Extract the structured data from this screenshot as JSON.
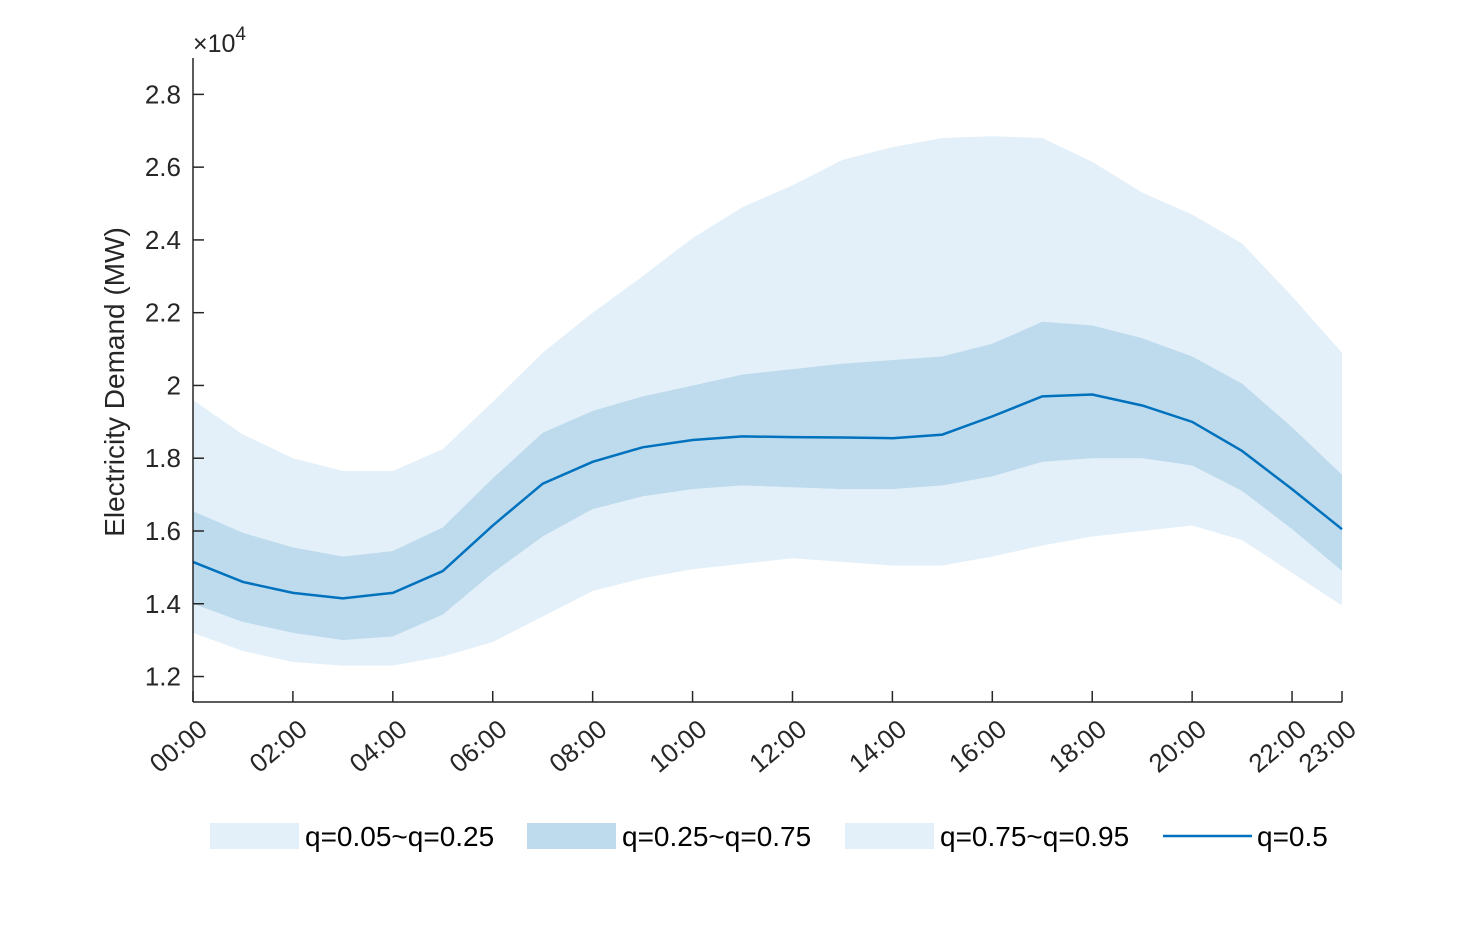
{
  "chart_data": {
    "type": "area",
    "ylabel": "Electricity Demand (MW)",
    "xlabel": "",
    "y_multiplier": {
      "times": "×10",
      "exponent": "4"
    },
    "ylim": [
      11300,
      29000
    ],
    "yticks": [
      12000,
      14000,
      16000,
      18000,
      20000,
      22000,
      24000,
      26000,
      28000
    ],
    "ytick_labels": [
      "1.2",
      "1.4",
      "1.6",
      "1.8",
      "2",
      "2.2",
      "2.4",
      "2.6",
      "2.8"
    ],
    "x_hours": [
      0,
      1,
      2,
      3,
      4,
      5,
      6,
      7,
      8,
      9,
      10,
      11,
      12,
      13,
      14,
      15,
      16,
      17,
      18,
      19,
      20,
      21,
      22,
      23
    ],
    "xticks": [
      0,
      2,
      4,
      6,
      8,
      10,
      12,
      14,
      16,
      18,
      20,
      22,
      23
    ],
    "xtick_labels": [
      "00:00",
      "02:00",
      "04:00",
      "06:00",
      "08:00",
      "10:00",
      "12:00",
      "14:00",
      "16:00",
      "18:00",
      "20:00",
      "22:00",
      "23:00"
    ],
    "quantiles": {
      "q05": [
        13200,
        12700,
        12400,
        12300,
        12300,
        12550,
        12950,
        13650,
        14350,
        14700,
        14950,
        15100,
        15250,
        15150,
        15050,
        15050,
        15300,
        15600,
        15850,
        16000,
        16150,
        15750,
        14850,
        13950
      ],
      "q25": [
        14000,
        13500,
        13200,
        13000,
        13100,
        13700,
        14850,
        15850,
        16600,
        16950,
        17150,
        17250,
        17200,
        17150,
        17150,
        17250,
        17500,
        17900,
        18000,
        18000,
        17800,
        17100,
        16050,
        14900
      ],
      "q50": [
        15150,
        14600,
        14300,
        14150,
        14300,
        14900,
        16150,
        17300,
        17900,
        18300,
        18500,
        18600,
        18580,
        18570,
        18550,
        18650,
        19150,
        19700,
        19750,
        19450,
        19000,
        18200,
        17150,
        16050
      ],
      "q75": [
        16550,
        15950,
        15550,
        15300,
        15450,
        16100,
        17450,
        18700,
        19300,
        19700,
        20000,
        20300,
        20450,
        20600,
        20700,
        20800,
        21150,
        21750,
        21650,
        21300,
        20800,
        20050,
        18850,
        17550
      ],
      "q95": [
        19600,
        18650,
        18000,
        17650,
        17650,
        18250,
        19550,
        20900,
        22000,
        23000,
        24050,
        24900,
        25500,
        26200,
        26550,
        26800,
        26850,
        26800,
        26150,
        25300,
        24700,
        23900,
        22450,
        20900
      ]
    },
    "legend": {
      "placement": "bottom",
      "entries": [
        {
          "label": "q=0.05~q=0.25",
          "kind": "patch",
          "color": "#e3f0f9"
        },
        {
          "label": "q=0.25~q=0.75",
          "kind": "patch",
          "color": "#bedbee"
        },
        {
          "label": "q=0.75~q=0.95",
          "kind": "patch",
          "color": "#e3f0f9"
        },
        {
          "label": "q=0.5",
          "kind": "line",
          "color": "#0072bd"
        }
      ]
    },
    "colors": {
      "outer_band": "#e3f0f9",
      "inner_band": "#bedbee",
      "median_line": "#0072bd",
      "axis": "#262626"
    },
    "grid": false
  }
}
